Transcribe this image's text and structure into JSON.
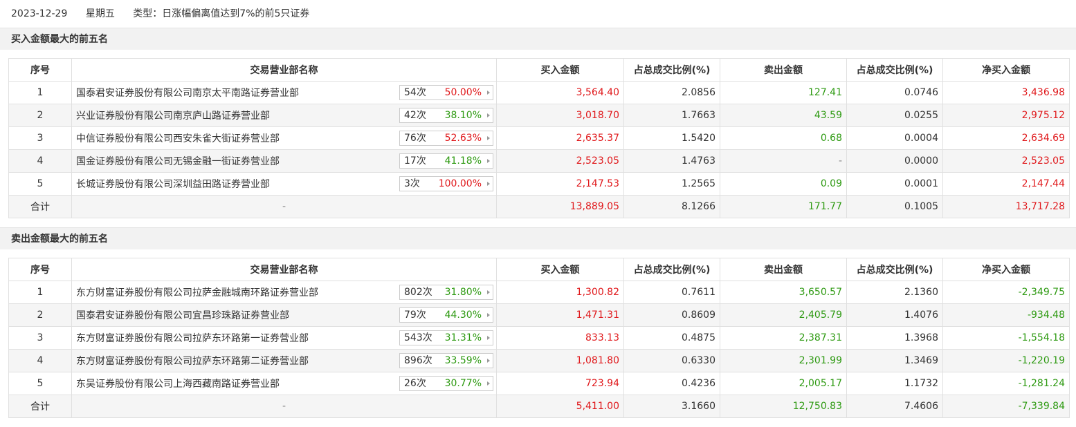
{
  "header": {
    "date": "2023-12-29",
    "weekday": "星期五",
    "type": "类型：日涨幅偏离值达到7%的前5只证券"
  },
  "sections": [
    {
      "title": "买入金额最大的前五名",
      "columns": [
        "序号",
        "交易营业部名称",
        "买入金额",
        "占总成交比例(%)",
        "卖出金额",
        "占总成交比例(%)",
        "净买入金额"
      ],
      "rows": [
        {
          "rank": "1",
          "name": "国泰君安证券股份有限公司南京太平南路证券营业部",
          "count": "54次",
          "ratio": "50.00%",
          "buy": "3,564.40",
          "buy_pct": "2.0856",
          "sell": "127.41",
          "sell_pct": "0.0746",
          "net": "3,436.98"
        },
        {
          "rank": "2",
          "name": "兴业证券股份有限公司南京庐山路证券营业部",
          "count": "42次",
          "ratio": "38.10%",
          "buy": "3,018.70",
          "buy_pct": "1.7663",
          "sell": "43.59",
          "sell_pct": "0.0255",
          "net": "2,975.12"
        },
        {
          "rank": "3",
          "name": "中信证券股份有限公司西安朱雀大街证券营业部",
          "count": "76次",
          "ratio": "52.63%",
          "buy": "2,635.37",
          "buy_pct": "1.5420",
          "sell": "0.68",
          "sell_pct": "0.0004",
          "net": "2,634.69"
        },
        {
          "rank": "4",
          "name": "国金证券股份有限公司无锡金融一街证券营业部",
          "count": "17次",
          "ratio": "41.18%",
          "buy": "2,523.05",
          "buy_pct": "1.4763",
          "sell": "-",
          "sell_pct": "0.0000",
          "net": "2,523.05"
        },
        {
          "rank": "5",
          "name": "长城证券股份有限公司深圳益田路证券营业部",
          "count": "3次",
          "ratio": "100.00%",
          "buy": "2,147.53",
          "buy_pct": "1.2565",
          "sell": "0.09",
          "sell_pct": "0.0001",
          "net": "2,147.44"
        }
      ],
      "total": {
        "rank": "合计",
        "name": "-",
        "buy": "13,889.05",
        "buy_pct": "8.1266",
        "sell": "171.77",
        "sell_pct": "0.1005",
        "net": "13,717.28"
      }
    },
    {
      "title": "卖出金额最大的前五名",
      "columns": [
        "序号",
        "交易营业部名称",
        "买入金额",
        "占总成交比例(%)",
        "卖出金额",
        "占总成交比例(%)",
        "净买入金额"
      ],
      "rows": [
        {
          "rank": "1",
          "name": "东方财富证券股份有限公司拉萨金融城南环路证券营业部",
          "count": "802次",
          "ratio": "31.80%",
          "buy": "1,300.82",
          "buy_pct": "0.7611",
          "sell": "3,650.57",
          "sell_pct": "2.1360",
          "net": "-2,349.75"
        },
        {
          "rank": "2",
          "name": "国泰君安证券股份有限公司宜昌珍珠路证券营业部",
          "count": "79次",
          "ratio": "44.30%",
          "buy": "1,471.31",
          "buy_pct": "0.8609",
          "sell": "2,405.79",
          "sell_pct": "1.4076",
          "net": "-934.48"
        },
        {
          "rank": "3",
          "name": "东方财富证券股份有限公司拉萨东环路第一证券营业部",
          "count": "543次",
          "ratio": "31.31%",
          "buy": "833.13",
          "buy_pct": "0.4875",
          "sell": "2,387.31",
          "sell_pct": "1.3968",
          "net": "-1,554.18"
        },
        {
          "rank": "4",
          "name": "东方财富证券股份有限公司拉萨东环路第二证券营业部",
          "count": "896次",
          "ratio": "33.59%",
          "buy": "1,081.80",
          "buy_pct": "0.6330",
          "sell": "2,301.99",
          "sell_pct": "1.3469",
          "net": "-1,220.19"
        },
        {
          "rank": "5",
          "name": "东吴证券股份有限公司上海西藏南路证券营业部",
          "count": "26次",
          "ratio": "30.77%",
          "buy": "723.94",
          "buy_pct": "0.4236",
          "sell": "2,005.17",
          "sell_pct": "1.1732",
          "net": "-1,281.24"
        }
      ],
      "total": {
        "rank": "合计",
        "name": "-",
        "buy": "5,411.00",
        "buy_pct": "3.1660",
        "sell": "12,750.83",
        "sell_pct": "7.4606",
        "net": "-7,339.84"
      }
    }
  ]
}
